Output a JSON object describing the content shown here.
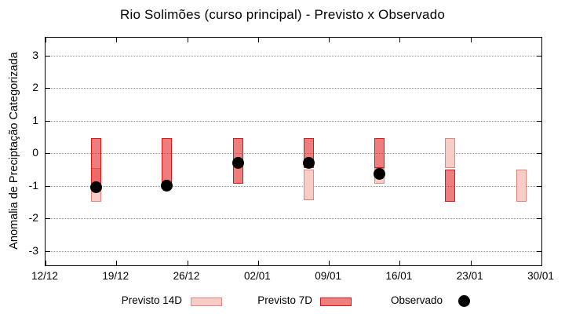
{
  "chart_data": {
    "type": "boxrange+scatter",
    "title": "Rio Solimões (curso principal) - Previsto x Observado",
    "xlabel": "",
    "ylabel": "Anomalia de Preciptação Categorizada",
    "ylim": [
      -3.5,
      3.5
    ],
    "yticks": [
      3,
      2,
      1,
      0,
      -1,
      -2,
      -3
    ],
    "xticks": [
      "12/12",
      "19/12",
      "26/12",
      "02/01",
      "09/01",
      "16/01",
      "23/01",
      "30/01"
    ],
    "xtick_interval_days": 7,
    "x_axis_span_days": 49,
    "grid": "horizontal dotted",
    "legend_position": "below-plot",
    "legend": {
      "items": [
        {
          "label": "Previsto 14D",
          "type": "box-light"
        },
        {
          "label": "Previsto 7D",
          "type": "box-red"
        },
        {
          "label": "Observado",
          "type": "dot-black"
        }
      ]
    },
    "colors": {
      "previsto_14d_fill": "#f8cdc8",
      "previsto_14d_border": "#e8837a",
      "previsto_7d_fill": "rgba(230,45,45,0.62)",
      "previsto_7d_fill_solid": "#f07f7f",
      "previsto_7d_border": "#e31212",
      "observado": "#000000",
      "grid": "#909090",
      "axis": "#000000"
    },
    "clusters": [
      {
        "x_day": 5,
        "previsto_14d": {
          "low": -1.5,
          "high": -0.45
        },
        "previsto_7d": {
          "low": -0.95,
          "high": 0.45
        },
        "observado": -1.05
      },
      {
        "x_day": 12,
        "previsto_14d": null,
        "previsto_7d": {
          "low": -0.95,
          "high": 0.45
        },
        "observado": -1.0
      },
      {
        "x_day": 19,
        "previsto_14d": null,
        "previsto_7d": {
          "low": -0.95,
          "high": 0.45
        },
        "observado": -0.3
      },
      {
        "x_day": 26,
        "previsto_14d": {
          "low": -1.45,
          "high": -0.5
        },
        "previsto_7d": {
          "low": -0.45,
          "high": 0.45
        },
        "observado": -0.3
      },
      {
        "x_day": 33,
        "previsto_14d": {
          "low": -0.95,
          "high": -0.45
        },
        "previsto_7d": {
          "low": -0.45,
          "high": 0.45
        },
        "observado": -0.65
      },
      {
        "x_day": 40,
        "previsto_14d": {
          "low": -0.45,
          "high": 0.45
        },
        "previsto_7d": {
          "low": -1.5,
          "high": -0.5
        },
        "observado": null
      },
      {
        "x_day": 47,
        "previsto_14d": {
          "low": -1.5,
          "high": -0.5
        },
        "previsto_7d": null,
        "observado": null
      }
    ]
  }
}
